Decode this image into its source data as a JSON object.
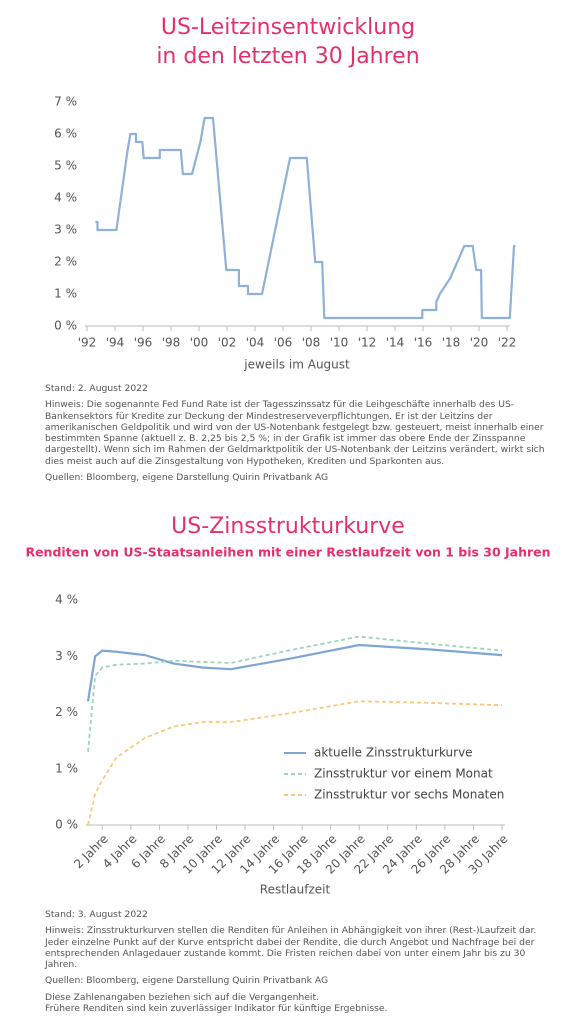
{
  "chart_data": [
    {
      "type": "line",
      "title": [
        "US-Leitzinsentwicklung",
        "in den letzten 30 Jahren"
      ],
      "xlabel": "jeweils im August",
      "x": [
        1992.6,
        1992.75,
        1992.75,
        1994.1,
        1994.9,
        1995.1,
        1995.5,
        1995.5,
        1995.95,
        1996.05,
        1997.2,
        1997.2,
        1998.7,
        1998.85,
        1999.5,
        2000.1,
        2000.4,
        2001.0,
        2001.95,
        2002.85,
        2002.85,
        2003.5,
        2003.5,
        2004.5,
        2006.5,
        2007.7,
        2008.3,
        2008.8,
        2008.95,
        2015.95,
        2015.95,
        2016.95,
        2016.95,
        2017.2,
        2017.95,
        2018.95,
        2019.55,
        2019.8,
        2020.15,
        2020.2,
        2022.2,
        2022.5,
        2022.6
      ],
      "series": [
        {
          "color": "#8fb1d7",
          "values": [
            3.25,
            3.25,
            3,
            3,
            5.5,
            6,
            6,
            5.75,
            5.75,
            5.25,
            5.25,
            5.5,
            5.5,
            4.75,
            4.75,
            5.75,
            6.5,
            6.5,
            1.75,
            1.75,
            1.25,
            1.25,
            1,
            1,
            5.25,
            5.25,
            2,
            2,
            0.25,
            0.25,
            0.5,
            0.5,
            0.75,
            1,
            1.5,
            2.5,
            2.5,
            1.75,
            1.75,
            0.25,
            0.25,
            2.5,
            2.5
          ]
        }
      ],
      "xlim": [
        1992,
        2022
      ],
      "xticks": [
        {
          "value": 1992,
          "label": "'92"
        },
        {
          "value": 1994,
          "label": "'94"
        },
        {
          "value": 1996,
          "label": "'96"
        },
        {
          "value": 1998,
          "label": "'98"
        },
        {
          "value": 2000,
          "label": "'00"
        },
        {
          "value": 2002,
          "label": "'02"
        },
        {
          "value": 2004,
          "label": "'04"
        },
        {
          "value": 2006,
          "label": "'06"
        },
        {
          "value": 2008,
          "label": "'08"
        },
        {
          "value": 2010,
          "label": "'10"
        },
        {
          "value": 2012,
          "label": "'12"
        },
        {
          "value": 2014,
          "label": "'14"
        },
        {
          "value": 2016,
          "label": "'16"
        },
        {
          "value": 2018,
          "label": "'18"
        },
        {
          "value": 2020,
          "label": "'20"
        },
        {
          "value": 2022,
          "label": "'22"
        }
      ],
      "ylim": [
        0,
        7
      ],
      "yticks": [
        {
          "value": 0,
          "label": "0 %"
        },
        {
          "value": 1,
          "label": "1 %"
        },
        {
          "value": 2,
          "label": "2 %"
        },
        {
          "value": 3,
          "label": "3 %"
        },
        {
          "value": 4,
          "label": "4 %"
        },
        {
          "value": 5,
          "label": "5 %"
        },
        {
          "value": 6,
          "label": "6 %"
        },
        {
          "value": 7,
          "label": "7 %"
        }
      ],
      "notes": [
        "Stand: 2. August 2022",
        "Hinweis: Die sogenannte Fed Fund Rate ist der Tagesszinssatz für die Leihgeschäfte innerhalb des US-Bankensektors für Kredite zur Deckung der Mindestreserveverpflichtungen. Er ist der Leitzins der amerikanischen Geldpolitik und wird von der US-Notenbank festgelegt bzw. gesteuert, meist innerhalb einer bestimmten Spanne (aktuell z. B. 2,25 bis 2,5 %; in der Grafik ist immer das obere Ende der Zinsspanne dargestellt). Wenn sich im Rahmen der Geldmarktpolitik der US-Notenbank der Leitzins verändert, wirkt sich dies meist auch auf die Zinsgestaltung von Hypotheken, Krediten und Sparkonten aus.",
        "Quellen: Bloomberg, eigene Darstellung Quirin Privatbank AG"
      ]
    },
    {
      "type": "line",
      "title": [
        "US-Zinsstrukturkurve"
      ],
      "subtitle": "Renditen von US-Staatsanleihen mit einer Restlaufzeit von 1 bis 30 Jahren",
      "xlabel": "Restlaufzeit",
      "x": [
        1,
        1.5,
        2,
        3,
        5,
        7,
        9,
        11,
        15,
        20,
        25,
        30
      ],
      "series": [
        {
          "name": "aktuelle Zinsstrukturkurve",
          "color": "#7ea6d2",
          "line_style": "solid",
          "values": [
            2.2,
            3.0,
            3.1,
            3.08,
            3.02,
            2.87,
            2.8,
            2.77,
            2.95,
            3.2,
            3.12,
            3.02
          ]
        },
        {
          "name": "Zinsstruktur vor einem Monat",
          "color": "#9fd4b9",
          "line_style": "dashed",
          "values": [
            1.3,
            2.65,
            2.8,
            2.85,
            2.87,
            2.92,
            2.9,
            2.88,
            3.1,
            3.35,
            3.22,
            3.1
          ]
        },
        {
          "name": "Zinsstruktur vor sechs Monaten",
          "color": "#f7c97b",
          "line_style": "dashed",
          "values": [
            0.0,
            0.55,
            0.8,
            1.2,
            1.55,
            1.75,
            1.83,
            1.83,
            1.98,
            2.2,
            2.17,
            2.13
          ]
        }
      ],
      "xlim": [
        1,
        30
      ],
      "xticks": [
        {
          "value": 2,
          "label": "2 Jahre"
        },
        {
          "value": 4,
          "label": "4 Jahre"
        },
        {
          "value": 6,
          "label": "6 Jahre"
        },
        {
          "value": 8,
          "label": "8 Jahre"
        },
        {
          "value": 10,
          "label": "10 Jahre"
        },
        {
          "value": 12,
          "label": "12 Jahre"
        },
        {
          "value": 14,
          "label": "14 Jahre"
        },
        {
          "value": 16,
          "label": "16 Jahre"
        },
        {
          "value": 18,
          "label": "18 Jahre"
        },
        {
          "value": 20,
          "label": "20 Jahre"
        },
        {
          "value": 22,
          "label": "22 Jahre"
        },
        {
          "value": 24,
          "label": "24 Jahre"
        },
        {
          "value": 26,
          "label": "26 Jahre"
        },
        {
          "value": 28,
          "label": "28 Jahre"
        },
        {
          "value": 30,
          "label": "30 Jahre"
        }
      ],
      "ylim": [
        0,
        4
      ],
      "yticks": [
        {
          "value": 0,
          "label": "0 %"
        },
        {
          "value": 1,
          "label": "1 %"
        },
        {
          "value": 2,
          "label": "2 %"
        },
        {
          "value": 3,
          "label": "3 %"
        },
        {
          "value": 4,
          "label": "4 %"
        }
      ],
      "legend": "lower right",
      "notes": [
        "Stand: 3. August 2022",
        "Hinweis: Zinsstrukturkurven stellen die Renditen für Anleihen in Abhängigkeit von ihrer (Rest-)Laufzeit dar. Jeder einzelne Punkt auf der Kurve entspricht dabei der Rendite, die durch Angebot und Nachfrage bei der entsprechenden Anlagedauer zustande kommt. Die Fristen reichen dabei von unter einem Jahr bis zu 30 Jahren.",
        "Quellen: Bloomberg, eigene Darstellung Quirin Privatbank AG",
        "Diese Zahlenangaben beziehen sich auf die Vergangenheit.",
        "Frühere Renditen sind kein zuverlässiger Indikator für künftige Ergebnisse."
      ]
    }
  ]
}
